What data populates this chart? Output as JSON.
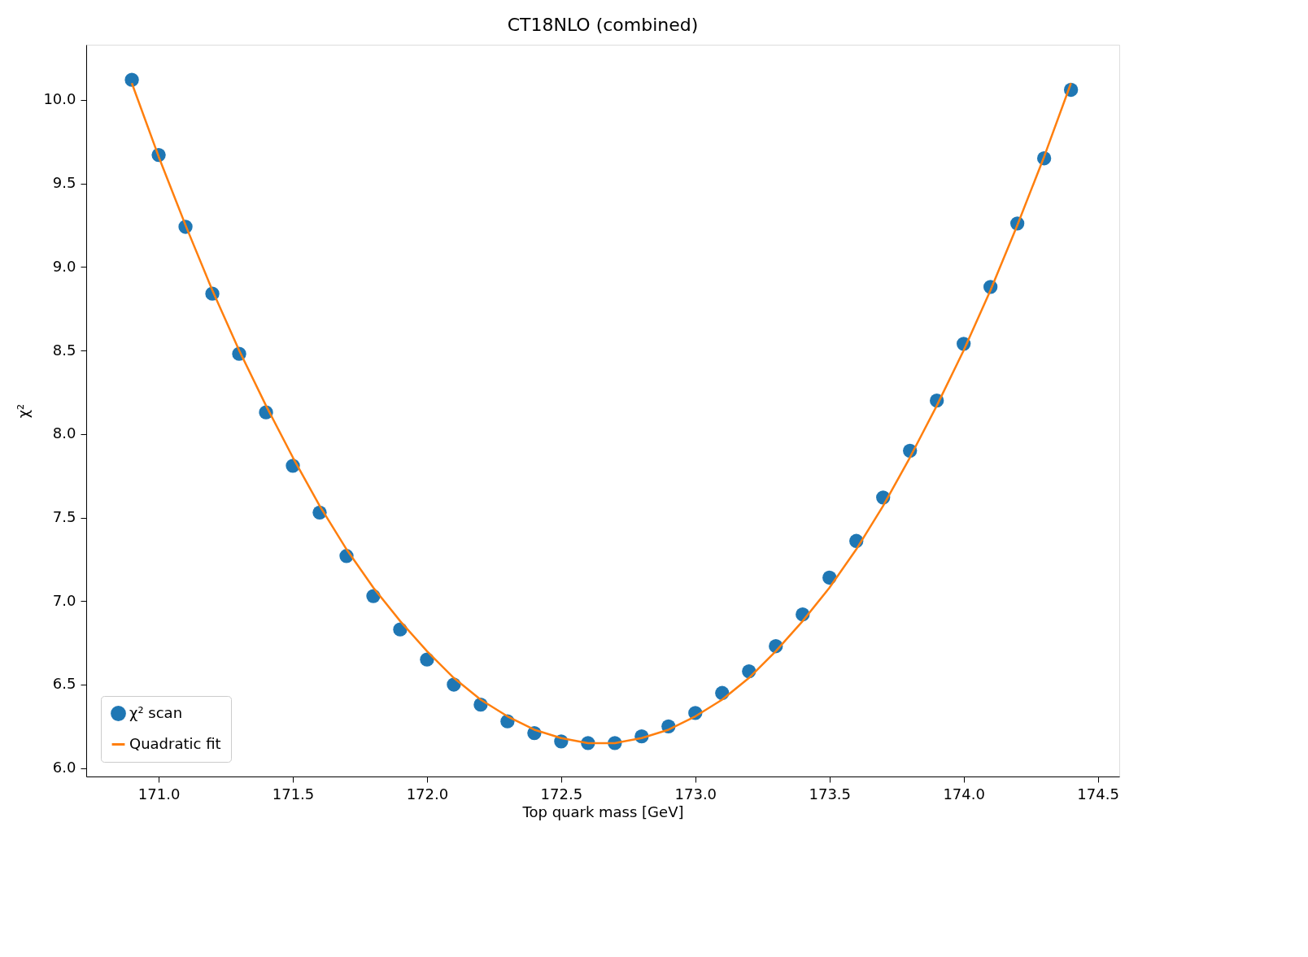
{
  "chart_data": {
    "type": "scatter",
    "title": "CT18NLO (combined)",
    "xlabel": "Top quark mass [GeV]",
    "ylabel": "χ²",
    "xlim": [
      170.73,
      174.58
    ],
    "xticks": [
      {
        "value": 171,
        "label": "171.0"
      },
      171.5,
      {
        "value": 172,
        "label": "172.0"
      },
      172.5,
      {
        "value": 173,
        "label": "173.0"
      },
      173.5,
      {
        "value": 174,
        "label": "174.0"
      },
      174.5
    ],
    "ylim": [
      5.95,
      10.33
    ],
    "yticks": [
      {
        "value": 6,
        "label": "6.0"
      },
      6.5,
      {
        "value": 7,
        "label": "7.0"
      },
      7.5,
      {
        "value": 8,
        "label": "8.0"
      },
      8.5,
      {
        "value": 9,
        "label": "9.0"
      },
      9.5,
      {
        "value": 10,
        "label": "10.0"
      }
    ],
    "grid": false,
    "legend": "bottom left",
    "series": [
      {
        "name": "χ² scan",
        "marker": "circle",
        "color": "#1f77b4",
        "x": [
          170.9,
          171.0,
          171.1,
          171.2,
          171.3,
          171.4,
          171.5,
          171.6,
          171.7,
          171.8,
          171.9,
          172.0,
          172.1,
          172.2,
          172.3,
          172.4,
          172.5,
          172.6,
          172.7,
          172.8,
          172.9,
          173.0,
          173.1,
          173.2,
          173.3,
          173.4,
          173.5,
          173.6,
          173.7,
          173.8,
          173.9,
          174.0,
          174.1,
          174.2,
          174.3,
          174.4
        ],
        "values": [
          10.12,
          9.67,
          9.24,
          8.84,
          8.48,
          8.13,
          7.81,
          7.53,
          7.27,
          7.03,
          6.83,
          6.65,
          6.5,
          6.38,
          6.28,
          6.21,
          6.16,
          6.15,
          6.15,
          6.19,
          6.25,
          6.33,
          6.45,
          6.58,
          6.73,
          6.92,
          7.14,
          7.36,
          7.62,
          7.9,
          8.2,
          8.54,
          8.88,
          9.26,
          9.65,
          10.06
        ]
      },
      {
        "name": "Quadratic fit",
        "type": "line",
        "marker": "none",
        "line_style": "solid",
        "color": "#ff7f0e",
        "x": [
          170.9,
          171.0,
          171.1,
          171.2,
          171.3,
          171.4,
          171.5,
          171.6,
          171.7,
          171.8,
          171.9,
          172.0,
          172.1,
          172.2,
          172.3,
          172.4,
          172.5,
          172.6,
          172.7,
          172.8,
          172.9,
          173.0,
          173.1,
          173.2,
          173.3,
          173.4,
          173.5,
          173.6,
          173.7,
          173.8,
          173.9,
          174.0,
          174.1,
          174.2,
          174.3,
          174.4
        ],
        "values": [
          10.1,
          9.66,
          9.25,
          8.86,
          8.5,
          8.17,
          7.86,
          7.57,
          7.31,
          7.08,
          6.88,
          6.7,
          6.54,
          6.41,
          6.31,
          6.23,
          6.18,
          6.15,
          6.15,
          6.18,
          6.23,
          6.31,
          6.41,
          6.54,
          6.7,
          6.88,
          7.08,
          7.31,
          7.57,
          7.86,
          8.17,
          8.5,
          8.86,
          9.25,
          9.66,
          10.1
        ]
      }
    ]
  }
}
